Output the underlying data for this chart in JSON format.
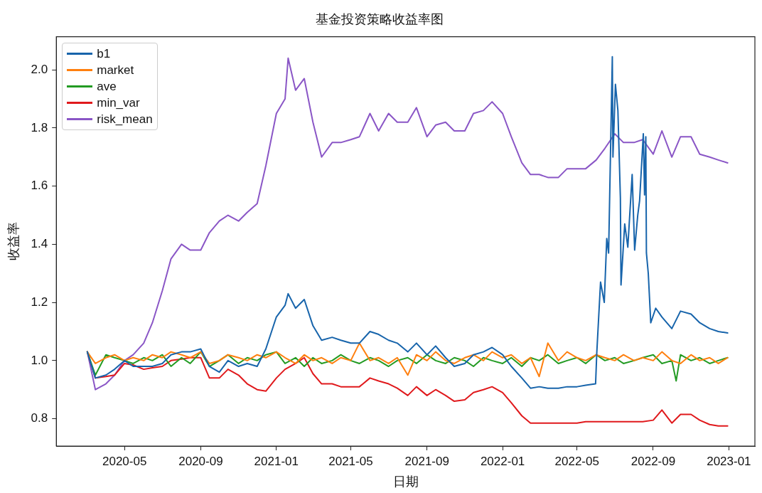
{
  "chart_data": {
    "type": "line",
    "title": "基金投资策略收益率图",
    "xlabel": "日期",
    "ylabel": "收益率",
    "legend": "top left",
    "grid": false,
    "marker": "none",
    "line_style": "solid",
    "xlim": [
      "2020-01-12",
      "2023-02-12"
    ],
    "xticks": [
      "2020-05",
      "2020-09",
      "2021-01",
      "2021-05",
      "2021-09",
      "2022-01",
      "2022-05",
      "2022-09",
      "2023-01"
    ],
    "ylim": [
      0.706,
      2.114
    ],
    "yticks": [
      {
        "value": 0.8,
        "label": "0.8"
      },
      {
        "value": 1,
        "label": "1.0"
      },
      {
        "value": 1.2,
        "label": "1.2"
      },
      {
        "value": 1.4,
        "label": "1.4"
      },
      {
        "value": 1.6,
        "label": "1.6"
      },
      {
        "value": 1.8,
        "label": "1.8"
      },
      {
        "value": 2,
        "label": "2.0"
      }
    ],
    "x": [
      "2020-03-02",
      "2020-03-15",
      "2020-04-01",
      "2020-04-15",
      "2020-05-01",
      "2020-05-15",
      "2020-06-01",
      "2020-06-15",
      "2020-07-01",
      "2020-07-15",
      "2020-08-01",
      "2020-08-15",
      "2020-09-01",
      "2020-09-15",
      "2020-10-01",
      "2020-10-15",
      "2020-11-01",
      "2020-11-15",
      "2020-12-01",
      "2020-12-15",
      "2021-01-01",
      "2021-01-15",
      "2021-02-01",
      "2021-02-15",
      "2021-03-01",
      "2021-03-15",
      "2021-04-01",
      "2021-04-15",
      "2021-05-01",
      "2021-05-15",
      "2021-06-01",
      "2021-06-15",
      "2021-07-01",
      "2021-07-15",
      "2021-08-01",
      "2021-08-15",
      "2021-09-01",
      "2021-09-15",
      "2021-10-01",
      "2021-10-15",
      "2021-11-01",
      "2021-11-15",
      "2021-12-01",
      "2021-12-15",
      "2022-01-01",
      "2022-01-15",
      "2022-02-01",
      "2022-02-15",
      "2022-03-01",
      "2022-03-15",
      "2022-04-01",
      "2022-04-15",
      "2022-05-01",
      "2022-05-15",
      "2022-06-01",
      "2022-06-15",
      "2022-07-01",
      "2022-07-15",
      "2022-08-01",
      "2022-08-15",
      "2022-09-01",
      "2022-09-15",
      "2022-10-01",
      "2022-10-15",
      "2022-11-01",
      "2022-11-15",
      "2022-12-01",
      "2022-12-15",
      "2022-12-30"
    ],
    "series": [
      {
        "name": "b1",
        "color": "#1764ab",
        "x": [
          "2020-03-02",
          "2020-03-15",
          "2020-04-01",
          "2020-04-15",
          "2020-05-01",
          "2020-05-15",
          "2020-06-01",
          "2020-06-15",
          "2020-07-01",
          "2020-07-15",
          "2020-08-01",
          "2020-08-15",
          "2020-09-01",
          "2020-09-15",
          "2020-10-01",
          "2020-10-15",
          "2020-11-01",
          "2020-11-15",
          "2020-12-01",
          "2020-12-15",
          "2021-01-01",
          "2021-01-15",
          "2021-01-20",
          "2021-02-01",
          "2021-02-15",
          "2021-03-01",
          "2021-03-15",
          "2021-04-01",
          "2021-04-15",
          "2021-05-01",
          "2021-05-15",
          "2021-06-01",
          "2021-06-15",
          "2021-07-01",
          "2021-07-15",
          "2021-08-01",
          "2021-08-15",
          "2021-09-01",
          "2021-09-15",
          "2021-10-01",
          "2021-10-15",
          "2021-11-01",
          "2021-11-15",
          "2021-12-01",
          "2021-12-15",
          "2022-01-01",
          "2022-01-15",
          "2022-02-01",
          "2022-02-15",
          "2022-03-01",
          "2022-03-15",
          "2022-04-01",
          "2022-04-15",
          "2022-05-01",
          "2022-05-15",
          "2022-05-31",
          "2022-06-02",
          "2022-06-08",
          "2022-06-14",
          "2022-06-18",
          "2022-06-21",
          "2022-06-27",
          "2022-06-28",
          "2022-07-02",
          "2022-07-06",
          "2022-07-10",
          "2022-07-11",
          "2022-07-17",
          "2022-07-22",
          "2022-07-29",
          "2022-08-02",
          "2022-08-07",
          "2022-08-10",
          "2022-08-16",
          "2022-08-18",
          "2022-08-20",
          "2022-08-21",
          "2022-08-24",
          "2022-08-28",
          "2022-09-05",
          "2022-09-15",
          "2022-10-01",
          "2022-10-15",
          "2022-11-01",
          "2022-11-15",
          "2022-12-01",
          "2022-12-15",
          "2022-12-30"
        ],
        "values": [
          1.03,
          0.94,
          0.95,
          0.97,
          1.0,
          0.98,
          0.98,
          0.98,
          0.99,
          1.02,
          1.03,
          1.03,
          1.04,
          0.98,
          0.96,
          1.0,
          0.98,
          0.99,
          0.98,
          1.04,
          1.15,
          1.19,
          1.23,
          1.18,
          1.21,
          1.12,
          1.07,
          1.08,
          1.07,
          1.06,
          1.06,
          1.1,
          1.09,
          1.07,
          1.06,
          1.03,
          1.06,
          1.02,
          1.05,
          1.01,
          0.98,
          0.99,
          1.02,
          1.03,
          1.045,
          1.02,
          0.98,
          0.94,
          0.905,
          0.91,
          0.905,
          0.905,
          0.91,
          0.91,
          0.915,
          0.92,
          1.03,
          1.27,
          1.2,
          1.42,
          1.37,
          2.045,
          1.7,
          1.95,
          1.86,
          1.56,
          1.26,
          1.47,
          1.39,
          1.64,
          1.38,
          1.5,
          1.55,
          1.78,
          1.57,
          1.77,
          1.37,
          1.3,
          1.13,
          1.18,
          1.15,
          1.11,
          1.17,
          1.16,
          1.13,
          1.11,
          1.1,
          1.095
        ]
      },
      {
        "name": "market",
        "color": "#ff7f0e",
        "values": [
          1.03,
          0.99,
          1.01,
          1.02,
          1.0,
          1.01,
          1.0,
          1.02,
          1.01,
          1.03,
          1.02,
          1.01,
          1.03,
          0.99,
          1.0,
          1.02,
          1.01,
          1.0,
          1.02,
          1.01,
          1.03,
          1.01,
          0.99,
          1.02,
          1.0,
          1.01,
          0.99,
          1.01,
          1.0,
          1.06,
          1.0,
          1.01,
          0.99,
          1.01,
          0.95,
          1.02,
          1.0,
          1.03,
          1.0,
          0.99,
          1.01,
          1.02,
          1.0,
          1.03,
          1.01,
          1.02,
          0.99,
          1.01,
          0.945,
          1.06,
          1.0,
          1.03,
          1.01,
          1.0,
          1.02,
          1.01,
          1.0,
          1.02,
          1.0,
          1.01,
          1.0,
          1.03,
          1.0,
          0.99,
          1.02,
          1.0,
          1.01,
          0.99,
          1.01
        ]
      },
      {
        "name": "ave",
        "color": "#239b23",
        "x": [
          "2020-03-02",
          "2020-03-15",
          "2020-04-01",
          "2020-04-15",
          "2020-05-01",
          "2020-05-15",
          "2020-06-01",
          "2020-06-15",
          "2020-07-01",
          "2020-07-15",
          "2020-08-01",
          "2020-08-15",
          "2020-09-01",
          "2020-09-15",
          "2020-10-01",
          "2020-10-15",
          "2020-11-01",
          "2020-11-15",
          "2020-12-01",
          "2020-12-15",
          "2021-01-01",
          "2021-01-15",
          "2021-02-01",
          "2021-02-15",
          "2021-03-01",
          "2021-03-15",
          "2021-04-01",
          "2021-04-15",
          "2021-05-01",
          "2021-05-15",
          "2021-06-01",
          "2021-06-15",
          "2021-07-01",
          "2021-07-15",
          "2021-08-01",
          "2021-08-15",
          "2021-09-01",
          "2021-09-15",
          "2021-10-01",
          "2021-10-15",
          "2021-11-01",
          "2021-11-15",
          "2021-12-01",
          "2021-12-15",
          "2022-01-01",
          "2022-01-15",
          "2022-02-01",
          "2022-02-15",
          "2022-03-01",
          "2022-03-15",
          "2022-04-01",
          "2022-04-15",
          "2022-05-01",
          "2022-05-15",
          "2022-06-01",
          "2022-06-15",
          "2022-07-01",
          "2022-07-15",
          "2022-08-01",
          "2022-08-15",
          "2022-09-01",
          "2022-09-15",
          "2022-10-01",
          "2022-10-08",
          "2022-10-15",
          "2022-11-01",
          "2022-11-15",
          "2022-12-01",
          "2022-12-15",
          "2022-12-30"
        ],
        "values": [
          1.03,
          0.95,
          1.02,
          1.01,
          1.0,
          0.99,
          1.01,
          1.0,
          1.02,
          0.98,
          1.01,
          0.99,
          1.03,
          0.98,
          1.0,
          1.02,
          0.99,
          1.01,
          1.0,
          1.02,
          1.03,
          0.99,
          1.01,
          0.98,
          1.01,
          0.99,
          1.0,
          1.02,
          1.0,
          0.99,
          1.01,
          1.0,
          0.98,
          1.0,
          1.01,
          0.99,
          1.02,
          1.0,
          0.99,
          1.01,
          1.0,
          0.98,
          1.01,
          1.0,
          0.99,
          1.01,
          0.98,
          1.01,
          1.0,
          1.02,
          0.99,
          1.0,
          1.01,
          0.99,
          1.02,
          1.0,
          1.01,
          0.99,
          1.0,
          1.01,
          1.02,
          0.99,
          1.0,
          0.93,
          1.02,
          1.0,
          1.01,
          0.99,
          1.0,
          1.01
        ]
      },
      {
        "name": "min_var",
        "color": "#e0191c",
        "values": [
          1.03,
          0.94,
          0.945,
          0.95,
          0.99,
          0.985,
          0.97,
          0.975,
          0.98,
          1.0,
          1.005,
          1.01,
          1.01,
          0.94,
          0.94,
          0.97,
          0.95,
          0.92,
          0.9,
          0.895,
          0.94,
          0.97,
          0.99,
          1.01,
          0.955,
          0.92,
          0.92,
          0.91,
          0.91,
          0.91,
          0.94,
          0.93,
          0.92,
          0.905,
          0.88,
          0.91,
          0.88,
          0.9,
          0.88,
          0.86,
          0.865,
          0.89,
          0.9,
          0.91,
          0.89,
          0.855,
          0.81,
          0.785,
          0.785,
          0.785,
          0.785,
          0.785,
          0.785,
          0.79,
          0.79,
          0.79,
          0.79,
          0.79,
          0.79,
          0.79,
          0.795,
          0.83,
          0.785,
          0.815,
          0.815,
          0.795,
          0.78,
          0.775,
          0.775
        ]
      },
      {
        "name": "risk_mean",
        "color": "#8a56c6",
        "x": [
          "2020-03-02",
          "2020-03-15",
          "2020-04-01",
          "2020-04-15",
          "2020-05-01",
          "2020-05-15",
          "2020-06-01",
          "2020-06-15",
          "2020-07-01",
          "2020-07-15",
          "2020-08-01",
          "2020-08-15",
          "2020-09-01",
          "2020-09-15",
          "2020-10-01",
          "2020-10-15",
          "2020-11-01",
          "2020-11-15",
          "2020-12-01",
          "2020-12-15",
          "2021-01-01",
          "2021-01-15",
          "2021-01-20",
          "2021-02-01",
          "2021-02-15",
          "2021-03-01",
          "2021-03-15",
          "2021-04-01",
          "2021-04-15",
          "2021-05-01",
          "2021-05-15",
          "2021-06-01",
          "2021-06-15",
          "2021-07-01",
          "2021-07-15",
          "2021-08-01",
          "2021-08-15",
          "2021-09-01",
          "2021-09-15",
          "2021-10-01",
          "2021-10-15",
          "2021-11-01",
          "2021-11-15",
          "2021-12-01",
          "2021-12-15",
          "2022-01-01",
          "2022-01-15",
          "2022-02-01",
          "2022-02-15",
          "2022-03-01",
          "2022-03-15",
          "2022-04-01",
          "2022-04-15",
          "2022-05-01",
          "2022-05-15",
          "2022-06-01",
          "2022-06-15",
          "2022-07-01",
          "2022-07-15",
          "2022-08-01",
          "2022-08-15",
          "2022-09-01",
          "2022-09-15",
          "2022-10-01",
          "2022-10-15",
          "2022-11-01",
          "2022-11-15",
          "2022-12-01",
          "2022-12-15",
          "2022-12-30"
        ],
        "values": [
          1.03,
          0.9,
          0.92,
          0.95,
          1.0,
          1.02,
          1.06,
          1.13,
          1.24,
          1.35,
          1.4,
          1.38,
          1.38,
          1.44,
          1.48,
          1.5,
          1.48,
          1.51,
          1.54,
          1.67,
          1.85,
          1.9,
          2.04,
          1.93,
          1.97,
          1.82,
          1.7,
          1.75,
          1.75,
          1.76,
          1.77,
          1.85,
          1.79,
          1.85,
          1.82,
          1.82,
          1.87,
          1.77,
          1.81,
          1.82,
          1.79,
          1.79,
          1.85,
          1.86,
          1.89,
          1.85,
          1.77,
          1.68,
          1.64,
          1.64,
          1.63,
          1.63,
          1.66,
          1.66,
          1.66,
          1.69,
          1.73,
          1.78,
          1.75,
          1.75,
          1.76,
          1.71,
          1.79,
          1.7,
          1.77,
          1.77,
          1.71,
          1.7,
          1.69,
          1.68
        ]
      }
    ]
  }
}
